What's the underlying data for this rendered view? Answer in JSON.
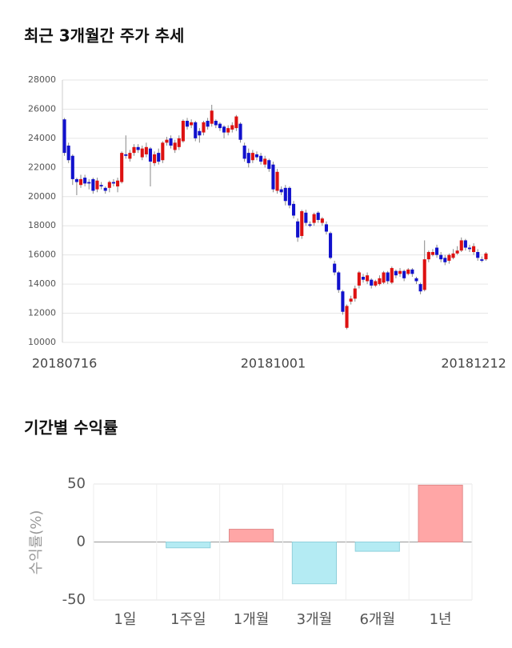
{
  "chart_data": [
    {
      "type": "candlestick",
      "title": "최근 3개월간 주가 추세",
      "categories": [
        "20180716",
        null,
        null,
        null,
        null,
        null,
        null,
        null,
        null,
        null,
        null,
        null,
        null,
        null,
        null,
        null,
        null,
        null,
        null,
        null,
        null,
        null,
        null,
        null,
        null,
        null,
        null,
        null,
        null,
        null,
        null,
        null,
        null,
        null,
        null,
        null,
        null,
        null,
        null,
        null,
        null,
        null,
        null,
        null,
        null,
        null,
        null,
        null,
        null,
        null,
        null,
        "20181001",
        null,
        null,
        null,
        null,
        null,
        null,
        null,
        null,
        null,
        null,
        null,
        null,
        null,
        null,
        null,
        null,
        null,
        null,
        null,
        null,
        null,
        null,
        null,
        null,
        null,
        null,
        null,
        null,
        null,
        null,
        null,
        null,
        null,
        null,
        null,
        null,
        null,
        null,
        null,
        null,
        null,
        null,
        null,
        null,
        null,
        null,
        null,
        null,
        "20181212",
        null,
        null,
        null
      ],
      "open": [
        25300,
        23500,
        22800,
        21200,
        20800,
        21300,
        21000,
        21200,
        20500,
        20800,
        20600,
        20600,
        21000,
        20700,
        21000,
        22900,
        22600,
        23000,
        23400,
        22700,
        22900,
        23300,
        22300,
        23000,
        22500,
        23700,
        24000,
        23200,
        23400,
        23800,
        25200,
        24900,
        25100,
        24500,
        24400,
        25200,
        25000,
        25200,
        25000,
        24800,
        24400,
        24600,
        24700,
        25000,
        23500,
        23000,
        22500,
        22900,
        22800,
        22200,
        22500,
        22200,
        20400,
        20500,
        20600,
        20600,
        19500,
        18300,
        17300,
        18900,
        18100,
        18200,
        18900,
        18200,
        18100,
        17500,
        15400,
        14800,
        13500,
        11000,
        12800,
        13000,
        13900,
        14500,
        14200,
        14300,
        13900,
        14000,
        14100,
        14800,
        14100,
        14900,
        14700,
        14900,
        14700,
        15000,
        14400,
        14000,
        13600,
        15700,
        16000,
        16500,
        16000,
        15800,
        15600,
        15800,
        16100,
        16300,
        17000,
        16500,
        16200,
        16200,
        15700,
        15700
      ],
      "high": [
        25400,
        23700,
        22900,
        21300,
        21500,
        21500,
        21200,
        21300,
        21300,
        21000,
        20700,
        21100,
        21200,
        21300,
        23100,
        24200,
        23200,
        23600,
        23600,
        23500,
        23700,
        23400,
        23100,
        23300,
        23800,
        24100,
        24200,
        23900,
        24200,
        25300,
        25400,
        25300,
        25200,
        24700,
        25200,
        25400,
        26300,
        25300,
        25100,
        24900,
        24900,
        25100,
        25600,
        25100,
        23700,
        23300,
        23200,
        23100,
        23000,
        22800,
        22600,
        22400,
        21900,
        20700,
        20800,
        20700,
        19700,
        18500,
        19100,
        19100,
        18300,
        18900,
        19000,
        18600,
        18300,
        17600,
        15600,
        14900,
        13600,
        12600,
        13200,
        13900,
        14900,
        14700,
        14800,
        14400,
        14300,
        14600,
        14900,
        14900,
        15200,
        15000,
        15100,
        15000,
        15100,
        15100,
        14500,
        14100,
        17000,
        16300,
        16400,
        16700,
        16200,
        16000,
        16100,
        16400,
        16600,
        17200,
        17100,
        16700,
        16800,
        16400,
        15900,
        16200
      ],
      "low": [
        22800,
        22300,
        20800,
        20100,
        20600,
        20700,
        20500,
        20200,
        20300,
        20500,
        20200,
        20300,
        20700,
        20300,
        20900,
        22600,
        22400,
        22800,
        23000,
        22500,
        22700,
        20700,
        22100,
        22200,
        22300,
        23500,
        23300,
        23000,
        23200,
        23700,
        24600,
        24700,
        23800,
        23700,
        24200,
        24600,
        24800,
        24700,
        24500,
        24000,
        24200,
        24400,
        24500,
        23700,
        22400,
        22000,
        22300,
        22500,
        22200,
        22000,
        21700,
        20300,
        20200,
        20100,
        19400,
        19200,
        18500,
        16900,
        17100,
        18000,
        17900,
        18000,
        18200,
        18000,
        17400,
        15700,
        14600,
        13400,
        11900,
        10900,
        12600,
        12800,
        13700,
        14100,
        14000,
        13700,
        13800,
        13900,
        14000,
        14000,
        14000,
        14400,
        14500,
        14200,
        14600,
        14500,
        14000,
        13300,
        13500,
        15500,
        15900,
        15800,
        15500,
        15300,
        15400,
        15700,
        16000,
        16200,
        16300,
        16200,
        16000,
        15600,
        15500,
        15600
      ],
      "close": [
        23000,
        22500,
        21200,
        21000,
        21200,
        20900,
        20900,
        20400,
        21100,
        20700,
        20400,
        21000,
        20900,
        21100,
        23000,
        22800,
        23000,
        23400,
        23200,
        23300,
        23400,
        22400,
        22900,
        22400,
        23700,
        23900,
        23500,
        23700,
        24000,
        25200,
        24800,
        25100,
        24000,
        24200,
        25100,
        24800,
        25900,
        24900,
        24700,
        24400,
        24700,
        24900,
        25500,
        23900,
        22600,
        22300,
        23000,
        22700,
        22400,
        22600,
        21900,
        20500,
        21700,
        20300,
        19700,
        19400,
        18700,
        17200,
        19000,
        18200,
        18000,
        18800,
        18400,
        18500,
        17600,
        15800,
        14800,
        13600,
        12100,
        12500,
        13000,
        13700,
        14800,
        14300,
        14600,
        13900,
        14200,
        14400,
        14800,
        14200,
        15100,
        14600,
        14900,
        14400,
        15000,
        14700,
        14200,
        13500,
        15700,
        16200,
        16200,
        16000,
        15700,
        15500,
        16000,
        16100,
        16300,
        17000,
        16500,
        16400,
        16600,
        15800,
        15600,
        16100
      ],
      "up_color": "#dd1111",
      "down_color": "#1111cc",
      "ylim": [
        10000,
        28000
      ],
      "yticks": [
        10000,
        12000,
        14000,
        16000,
        18000,
        20000,
        22000,
        24000,
        26000,
        28000
      ],
      "grid": true
    },
    {
      "type": "bar",
      "title": "기간별 수익률",
      "ylabel": "수익률(%)",
      "categories": [
        "1일",
        "1주일",
        "1개월",
        "3개월",
        "6개월",
        "1년"
      ],
      "values": [
        0,
        -5,
        11,
        -36,
        -8,
        49
      ],
      "positive_color": "#ffa6a6",
      "negative_color": "#b4ebf3",
      "ylim": [
        -50,
        50
      ],
      "yticks": [
        -50,
        0,
        50
      ],
      "grid": true
    }
  ]
}
